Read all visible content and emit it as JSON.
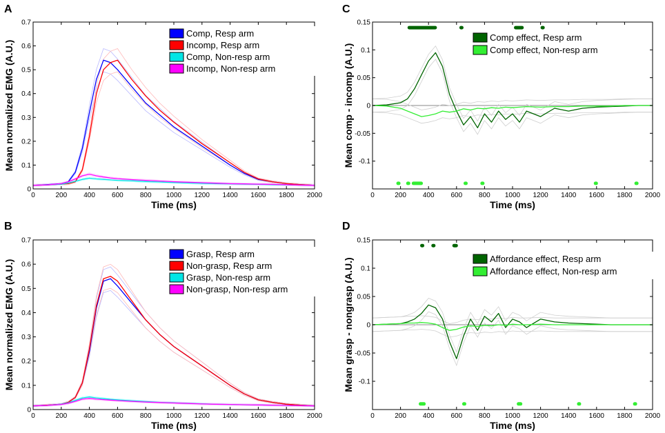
{
  "chart_data": [
    {
      "panel": "A",
      "type": "line",
      "xlabel": "Time (ms)",
      "ylabel": "Mean normalized EMG (A.U.)",
      "xlim": [
        0,
        2000
      ],
      "ylim": [
        0,
        0.7
      ],
      "xticks": [
        0,
        200,
        400,
        600,
        800,
        1000,
        1200,
        1400,
        1600,
        1800,
        2000
      ],
      "yticks": [
        0,
        0.1,
        0.2,
        0.3,
        0.4,
        0.5,
        0.6,
        0.7
      ],
      "ytick_labels": [
        "0",
        "0.1",
        "0.2",
        "0.3",
        "0.4",
        "0.5",
        "0.6",
        "0.7"
      ],
      "legend_position": "top-right",
      "x": [
        0,
        100,
        200,
        250,
        300,
        350,
        400,
        450,
        500,
        550,
        600,
        700,
        800,
        900,
        1000,
        1100,
        1200,
        1300,
        1400,
        1500,
        1600,
        1700,
        1800,
        1900,
        2000
      ],
      "series": [
        {
          "name": "Comp, Resp arm",
          "color": "#0000ff",
          "values": [
            0.015,
            0.018,
            0.022,
            0.03,
            0.07,
            0.17,
            0.32,
            0.46,
            0.54,
            0.53,
            0.5,
            0.43,
            0.36,
            0.31,
            0.26,
            0.22,
            0.18,
            0.14,
            0.1,
            0.065,
            0.04,
            0.03,
            0.022,
            0.018,
            0.015
          ]
        },
        {
          "name": "Incomp, Resp arm",
          "color": "#ff0000",
          "values": [
            0.015,
            0.017,
            0.02,
            0.022,
            0.03,
            0.08,
            0.22,
            0.4,
            0.5,
            0.53,
            0.54,
            0.46,
            0.39,
            0.33,
            0.28,
            0.235,
            0.19,
            0.15,
            0.11,
            0.07,
            0.042,
            0.03,
            0.022,
            0.018,
            0.015
          ]
        },
        {
          "name": "Comp, Non-resp arm",
          "color": "#00e5e5",
          "values": [
            0.015,
            0.017,
            0.02,
            0.025,
            0.032,
            0.04,
            0.045,
            0.042,
            0.04,
            0.038,
            0.036,
            0.034,
            0.031,
            0.029,
            0.027,
            0.025,
            0.023,
            0.022,
            0.021,
            0.02,
            0.019,
            0.018,
            0.017,
            0.016,
            0.015
          ]
        },
        {
          "name": "Incomp, Non-resp arm",
          "color": "#ff00ff",
          "values": [
            0.015,
            0.017,
            0.022,
            0.03,
            0.042,
            0.055,
            0.062,
            0.055,
            0.05,
            0.046,
            0.043,
            0.039,
            0.036,
            0.033,
            0.03,
            0.028,
            0.026,
            0.024,
            0.022,
            0.021,
            0.02,
            0.019,
            0.018,
            0.016,
            0.015
          ]
        }
      ]
    },
    {
      "panel": "B",
      "type": "line",
      "xlabel": "Time (ms)",
      "ylabel": "Mean normalized EMG (A.U.)",
      "xlim": [
        0,
        2000
      ],
      "ylim": [
        0,
        0.7
      ],
      "xticks": [
        0,
        200,
        400,
        600,
        800,
        1000,
        1200,
        1400,
        1600,
        1800,
        2000
      ],
      "yticks": [
        0,
        0.1,
        0.2,
        0.3,
        0.4,
        0.5,
        0.6,
        0.7
      ],
      "ytick_labels": [
        "0",
        "0.1",
        "0.2",
        "0.3",
        "0.4",
        "0.5",
        "0.6",
        "0.7"
      ],
      "legend_position": "top-right",
      "x": [
        0,
        100,
        200,
        250,
        300,
        350,
        400,
        450,
        500,
        550,
        600,
        700,
        800,
        900,
        1000,
        1100,
        1200,
        1300,
        1400,
        1500,
        1600,
        1700,
        1800,
        1900,
        2000
      ],
      "series": [
        {
          "name": "Grasp, Resp arm",
          "color": "#0000ff",
          "values": [
            0.015,
            0.018,
            0.022,
            0.03,
            0.05,
            0.11,
            0.24,
            0.42,
            0.53,
            0.54,
            0.51,
            0.44,
            0.37,
            0.31,
            0.26,
            0.22,
            0.18,
            0.14,
            0.1,
            0.065,
            0.04,
            0.03,
            0.022,
            0.018,
            0.015
          ]
        },
        {
          "name": "Non-grasp, Resp arm",
          "color": "#ff0000",
          "values": [
            0.015,
            0.018,
            0.022,
            0.03,
            0.05,
            0.11,
            0.25,
            0.43,
            0.54,
            0.55,
            0.53,
            0.45,
            0.37,
            0.31,
            0.26,
            0.22,
            0.18,
            0.14,
            0.1,
            0.065,
            0.04,
            0.03,
            0.022,
            0.018,
            0.015
          ]
        },
        {
          "name": "Grasp, Non-resp arm",
          "color": "#00e5e5",
          "values": [
            0.015,
            0.017,
            0.022,
            0.028,
            0.038,
            0.048,
            0.052,
            0.048,
            0.045,
            0.042,
            0.04,
            0.036,
            0.033,
            0.03,
            0.028,
            0.026,
            0.024,
            0.022,
            0.021,
            0.02,
            0.019,
            0.018,
            0.017,
            0.016,
            0.015
          ]
        },
        {
          "name": "Non-grasp, Non-resp arm",
          "color": "#ff00ff",
          "values": [
            0.015,
            0.017,
            0.021,
            0.026,
            0.034,
            0.043,
            0.046,
            0.043,
            0.041,
            0.039,
            0.037,
            0.034,
            0.031,
            0.029,
            0.027,
            0.025,
            0.023,
            0.022,
            0.021,
            0.02,
            0.019,
            0.018,
            0.017,
            0.016,
            0.015
          ]
        }
      ]
    },
    {
      "panel": "C",
      "type": "line",
      "xlabel": "Time (ms)",
      "ylabel": "Mean comp - incomp (A.U.)",
      "xlim": [
        0,
        2000
      ],
      "ylim": [
        -0.15,
        0.15
      ],
      "xticks": [
        0,
        200,
        400,
        600,
        800,
        1000,
        1200,
        1400,
        1600,
        1800,
        2000
      ],
      "yticks": [
        -0.1,
        -0.05,
        0,
        0.05,
        0.1,
        0.15
      ],
      "ytick_labels": [
        "-0.1",
        "-0.05",
        "0",
        "0.05",
        "0.1",
        "0.15"
      ],
      "legend_position": "top-right",
      "x": [
        0,
        100,
        200,
        250,
        300,
        350,
        400,
        450,
        500,
        550,
        600,
        650,
        700,
        750,
        800,
        850,
        900,
        950,
        1000,
        1050,
        1100,
        1200,
        1300,
        1400,
        1500,
        1600,
        1700,
        1800,
        1900,
        2000
      ],
      "series": [
        {
          "name": "Comp effect, Resp arm",
          "color": "#006400",
          "values": [
            0,
            0.001,
            0.005,
            0.012,
            0.03,
            0.055,
            0.08,
            0.095,
            0.07,
            0.02,
            -0.01,
            -0.035,
            -0.02,
            -0.04,
            -0.015,
            -0.03,
            -0.01,
            -0.025,
            -0.015,
            -0.03,
            -0.01,
            -0.02,
            -0.005,
            -0.01,
            -0.005,
            -0.003,
            -0.002,
            -0.001,
            0,
            0
          ]
        },
        {
          "name": "Comp effect, Non-resp arm",
          "color": "#33ee33",
          "values": [
            0,
            -0.001,
            -0.005,
            -0.01,
            -0.015,
            -0.02,
            -0.018,
            -0.015,
            -0.01,
            -0.012,
            -0.01,
            -0.006,
            -0.008,
            -0.005,
            -0.006,
            -0.004,
            -0.005,
            -0.003,
            -0.004,
            -0.003,
            -0.002,
            -0.003,
            -0.002,
            -0.002,
            -0.001,
            -0.001,
            -0.001,
            0,
            0,
            0
          ]
        }
      ],
      "significance_markers": [
        {
          "series": "Comp effect, Resp arm",
          "y": 0.14,
          "x_ranges": [
            [
              260,
              450
            ],
            [
              630,
              640
            ],
            [
              1020,
              1070
            ],
            [
              1210,
              1220
            ]
          ]
        },
        {
          "series": "Comp effect, Non-resp arm",
          "y": -0.14,
          "x_ranges": [
            [
              180,
              190
            ],
            [
              250,
              260
            ],
            [
              290,
              350
            ],
            [
              660,
              670
            ],
            [
              780,
              790
            ],
            [
              1590,
              1600
            ],
            [
              1880,
              1890
            ]
          ]
        }
      ]
    },
    {
      "panel": "D",
      "type": "line",
      "xlabel": "Time (ms)",
      "ylabel": "Mean grasp - nongrasp (A.U.)",
      "xlim": [
        0,
        2000
      ],
      "ylim": [
        -0.15,
        0.15
      ],
      "xticks": [
        0,
        200,
        400,
        600,
        800,
        1000,
        1200,
        1400,
        1600,
        1800,
        2000
      ],
      "yticks": [
        -0.1,
        -0.05,
        0,
        0.05,
        0.1,
        0.15
      ],
      "ytick_labels": [
        "-0.1",
        "-0.05",
        "0",
        "0.05",
        "0.1",
        "0.15"
      ],
      "legend_position": "top-right",
      "x": [
        0,
        100,
        200,
        250,
        300,
        350,
        400,
        450,
        500,
        550,
        600,
        650,
        700,
        750,
        800,
        850,
        900,
        950,
        1000,
        1050,
        1100,
        1200,
        1300,
        1400,
        1500,
        1600,
        1700,
        1800,
        1900,
        2000
      ],
      "series": [
        {
          "name": "Affordance effect, Resp arm",
          "color": "#006400",
          "values": [
            0,
            0.001,
            0.002,
            0.005,
            0.01,
            0.02,
            0.035,
            0.03,
            0.01,
            -0.03,
            -0.06,
            -0.02,
            0.01,
            -0.01,
            0.015,
            0.005,
            0.02,
            -0.005,
            0.01,
            0.005,
            -0.005,
            0.01,
            0.005,
            0.003,
            0.002,
            0.001,
            0,
            0,
            0,
            0
          ]
        },
        {
          "name": "Affordance effect, Non-resp arm",
          "color": "#33ee33",
          "values": [
            0,
            0.001,
            0.002,
            0.003,
            0.003,
            0.004,
            0.003,
            0.001,
            -0.005,
            -0.01,
            -0.008,
            -0.004,
            -0.002,
            -0.003,
            -0.001,
            -0.002,
            0,
            -0.001,
            0.001,
            0,
            0,
            0.001,
            0,
            0,
            0,
            0,
            0,
            0,
            0,
            0
          ]
        }
      ],
      "significance_markers": [
        {
          "series": "Affordance effect, Resp arm",
          "y": 0.14,
          "x_ranges": [
            [
              350,
              360
            ],
            [
              430,
              440
            ],
            [
              580,
              600
            ]
          ]
        },
        {
          "series": "Affordance effect, Non-resp arm",
          "y": -0.14,
          "x_ranges": [
            [
              340,
              370
            ],
            [
              650,
              660
            ],
            [
              1040,
              1060
            ],
            [
              1470,
              1480
            ],
            [
              1870,
              1880
            ]
          ]
        }
      ]
    }
  ]
}
